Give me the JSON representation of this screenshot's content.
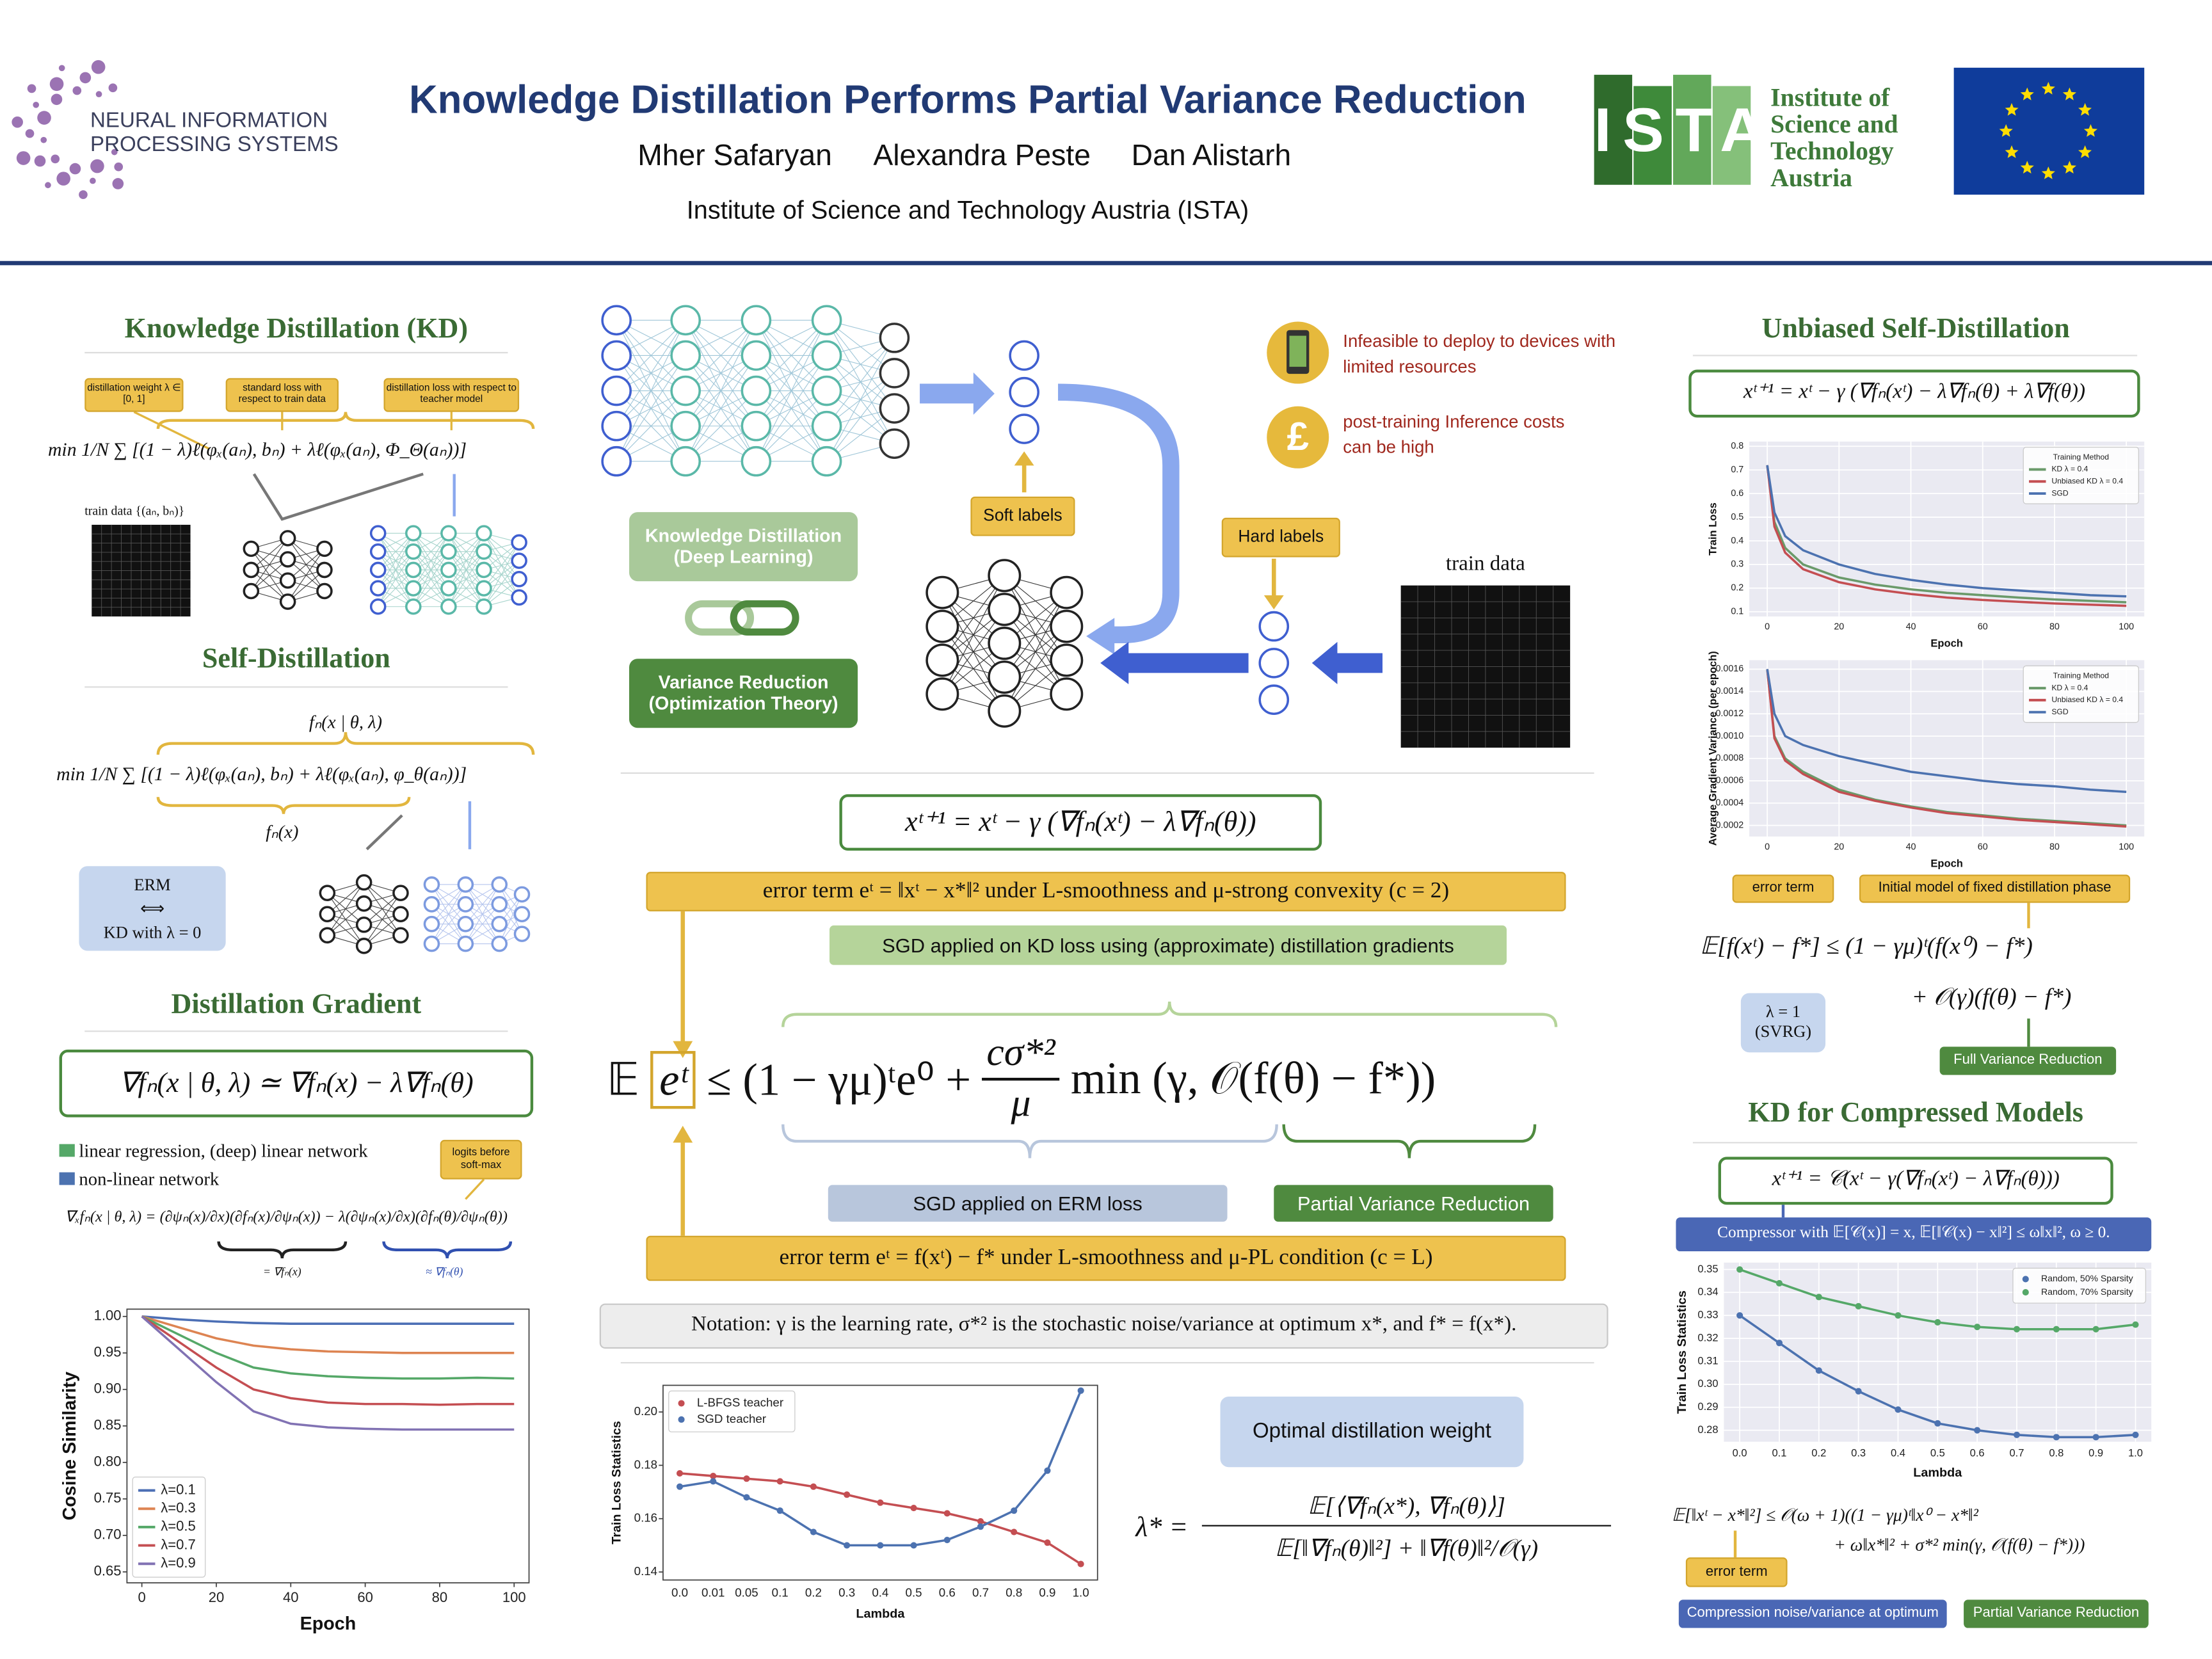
{
  "header": {
    "logo_text": [
      "NEURAL INFORMATION",
      "PROCESSING SYSTEMS"
    ],
    "title": "Knowledge Distillation Performs Partial Variance Reduction",
    "authors": [
      "Mher Safaryan",
      "Alexandra Peste",
      "Dan Alistarh"
    ],
    "affiliation": "Institute of Science and Technology Austria (ISTA)",
    "ista_logo": "ISTA",
    "ista_name": [
      "Institute of",
      "Science and",
      "Technology",
      "Austria"
    ]
  },
  "kd": {
    "heading": "Knowledge Distillation (KD)",
    "tags": [
      "distillation weight λ ∈ [0, 1]",
      "standard loss with respect to train data",
      "distillation loss with respect to teacher model"
    ],
    "formula": "min  1/N ∑ [(1 − λ)ℓ(φₓ(aₙ), bₙ) + λℓ(φₓ(aₙ), Φ_Θ(aₙ))]",
    "train_data": "train data {(aₙ, bₙ)}"
  },
  "self_distillation": {
    "heading": "Self-Distillation",
    "top_label": "fₙ(x | θ, λ)",
    "formula": "min  1/N ∑ [(1 − λ)ℓ(φₓ(aₙ), bₙ) + λℓ(φₓ(aₙ), φ_θ(aₙ))]",
    "bottom_label": "fₙ(x)",
    "erm": [
      "ERM",
      "⟺",
      "KD with λ = 0"
    ]
  },
  "distillation_gradient": {
    "heading": "Distillation Gradient",
    "formula": "∇fₙ(x | θ, λ) ≃ ∇fₙ(x) − λ∇fₙ(θ)",
    "legend": [
      "linear regression, (deep) linear network",
      "non-linear network"
    ],
    "tag": "logits before soft-max",
    "formula2": "∇ₓfₙ(x | θ, λ) = (∂ψₙ(x)/∂x)(∂fₙ(x)/∂ψₙ(x)) − λ(∂ψₙ(x)/∂x)(∂fₙ(θ)/∂ψₙ(θ))",
    "under": [
      "= ∇fₙ(x)",
      "≈ ∇fₙ(θ)"
    ]
  },
  "middle": {
    "problems": [
      "Infeasible to deploy to devices with limited resources",
      "post-training Inference costs can be high"
    ],
    "icon": "£",
    "soft": "Soft labels",
    "hard": "Hard labels",
    "train_data": "train data",
    "kd_box": "Knowledge Distillation (Deep Learning)",
    "vr_box": "Variance Reduction (Optimization Theory)",
    "update": "xᵗ⁺¹ = xᵗ − γ (∇fₙ(xᵗ) − λ∇fₙ(θ))",
    "error1": "error term eᵗ = ‖xᵗ − x*‖² under L-smoothness and μ-strong convexity (c = 2)",
    "sgd_kd": "SGD applied on KD loss using (approximate) distillation gradients",
    "bound": {
      "lhs": "𝔼",
      "boxed": "eᵗ",
      "rhs": "≤ (1 − γμ)ᵗe⁰ +",
      "num": "cσ*²",
      "den": "μ",
      "tail": "min (γ, 𝒪(f(θ) − f*))"
    },
    "sgd_erm": "SGD applied on ERM loss",
    "pvr": "Partial Variance Reduction",
    "error2": "error term eᵗ = f(xᵗ) − f* under L-smoothness and μ-PL condition (c = L)",
    "notation": "Notation: γ is the learning rate, σ*² is the stochastic noise/variance at optimum x*, and f* = f(x*).",
    "optimal": "Optimal distillation weight",
    "lambda_star": {
      "lhs": "λ* =",
      "num": "𝔼[⟨∇fₙ(x*), ∇fₙ(θ)⟩]",
      "den": "𝔼[‖∇fₙ(θ)‖²] + ‖∇f(θ)‖²/𝒪(γ)"
    }
  },
  "right": {
    "heading": "Unbiased Self-Distillation",
    "update": "xᵗ⁺¹ = xᵗ − γ (∇fₙ(xᵗ) − λ∇fₙ(θ) + λ∇f(θ))",
    "tags": [
      "error term",
      "Initial model of fixed distillation phase"
    ],
    "bound": [
      "𝔼[f(xᵗ) − f*] ≤ (1 − γμ)ᵗ(f(x⁰) − f*)",
      "+ 𝒪(γ)(f(θ) − f*)"
    ],
    "svrg": [
      "λ = 1",
      "(SVRG)"
    ],
    "full_vr": "Full Variance Reduction",
    "heading2": "KD for Compressed Models",
    "update2": "xᵗ⁺¹ = 𝒞(xᵗ − γ(∇fₙ(xᵗ) − λ∇fₙ(θ)))",
    "compressor": "Compressor with 𝔼[𝒞(x)] = x, 𝔼[‖𝒞(x) − x‖²] ≤ ω‖x‖², ω ≥ 0.",
    "bound2": [
      "𝔼[‖xᵗ − x*‖²] ≤ 𝒪(ω + 1)((1 − γμ)ᵗ‖x⁰ − x*‖²",
      "+ ω‖x*‖² + σ*² min(γ, 𝒪(f(θ) − f*)))"
    ],
    "tags2": [
      "error term",
      "Compression noise/variance at optimum",
      "Partial Variance Reduction"
    ]
  },
  "chart_data": [
    {
      "type": "line",
      "x": [
        0,
        10,
        20,
        30,
        40,
        50,
        60,
        70,
        80,
        90,
        100
      ],
      "xlim": [
        -4,
        104
      ],
      "ylim": [
        0.635,
        1.01
      ],
      "xticks": [
        0,
        20,
        40,
        60,
        80,
        100
      ],
      "yticks": [
        {
          "value": 1,
          "label": "1.00"
        },
        0.95,
        {
          "value": 0.9,
          "label": "0.90"
        },
        0.85,
        {
          "value": 0.8,
          "label": "0.80"
        },
        0.75,
        {
          "value": 0.7,
          "label": "0.70"
        },
        0.65
      ],
      "xlabel": "Epoch",
      "ylabel": "Cosine Similarity",
      "legend": "lower left",
      "grid": false,
      "series": [
        {
          "name": "λ=0.1",
          "color": "#4c6fb5",
          "values": [
            1.0,
            0.996,
            0.993,
            0.991,
            0.99,
            0.99,
            0.99,
            0.99,
            0.99,
            0.99,
            0.99
          ]
        },
        {
          "name": "λ=0.3",
          "color": "#dd8452",
          "values": [
            1.0,
            0.985,
            0.97,
            0.96,
            0.955,
            0.952,
            0.951,
            0.95,
            0.95,
            0.95,
            0.95
          ]
        },
        {
          "name": "λ=0.5",
          "color": "#55a868",
          "values": [
            1.0,
            0.975,
            0.95,
            0.93,
            0.922,
            0.918,
            0.916,
            0.915,
            0.915,
            0.916,
            0.915
          ]
        },
        {
          "name": "λ=0.7",
          "color": "#c44e52",
          "values": [
            1.0,
            0.965,
            0.93,
            0.9,
            0.888,
            0.882,
            0.88,
            0.88,
            0.879,
            0.88,
            0.88
          ]
        },
        {
          "name": "λ=0.9",
          "color": "#8172b3",
          "values": [
            1.0,
            0.955,
            0.91,
            0.87,
            0.853,
            0.848,
            0.846,
            0.845,
            0.845,
            0.845,
            0.845
          ]
        }
      ]
    },
    {
      "type": "line",
      "x": [
        0,
        2,
        5,
        10,
        20,
        30,
        40,
        50,
        60,
        70,
        80,
        90,
        100
      ],
      "xlim": [
        -5,
        105
      ],
      "ylim": [
        0.08,
        0.82
      ],
      "xticks": [
        0,
        20,
        40,
        60,
        80,
        100
      ],
      "yticks": [
        0.1,
        0.2,
        0.3,
        0.4,
        0.5,
        0.6,
        0.7,
        0.8
      ],
      "xlabel": "Epoch",
      "ylabel": "Train Loss",
      "legend": "upper right",
      "legend_title": "Training Method",
      "grid": true,
      "series": [
        {
          "name": "KD λ = 0.4",
          "color": "#6a9a6a",
          "values": [
            0.72,
            0.48,
            0.37,
            0.3,
            0.245,
            0.215,
            0.195,
            0.18,
            0.17,
            0.16,
            0.152,
            0.146,
            0.14
          ]
        },
        {
          "name": "Unbiased KD λ = 0.4",
          "color": "#c44e52",
          "values": [
            0.72,
            0.46,
            0.35,
            0.28,
            0.225,
            0.195,
            0.175,
            0.16,
            0.15,
            0.142,
            0.135,
            0.13,
            0.125
          ]
        },
        {
          "name": "SGD",
          "color": "#4c72b0",
          "values": [
            0.72,
            0.52,
            0.42,
            0.36,
            0.3,
            0.26,
            0.235,
            0.215,
            0.2,
            0.19,
            0.18,
            0.17,
            0.165
          ]
        }
      ]
    },
    {
      "type": "line",
      "x": [
        0,
        2,
        5,
        10,
        20,
        30,
        40,
        50,
        60,
        70,
        80,
        90,
        100
      ],
      "xlim": [
        -5,
        105
      ],
      "ylim": [
        0.0001,
        0.00168
      ],
      "xticks": [
        0,
        20,
        40,
        60,
        80,
        100
      ],
      "yticks": [
        0.0002,
        0.0004,
        0.0006,
        0.0008,
        {
          "value": 0.001,
          "label": "0.0010"
        },
        0.0012,
        0.0014,
        0.0016
      ],
      "xlabel": "Epoch",
      "ylabel": "Average Gradient Variance (per epoch)",
      "legend": "upper right",
      "legend_title": "Training Method",
      "grid": true,
      "series": [
        {
          "name": "KD λ = 0.4",
          "color": "#6a9a6a",
          "values": [
            0.0016,
            0.001,
            0.0008,
            0.00068,
            0.00052,
            0.00043,
            0.00037,
            0.00032,
            0.00029,
            0.00026,
            0.00024,
            0.00022,
            0.0002
          ]
        },
        {
          "name": "Unbiased KD λ = 0.4",
          "color": "#c44e52",
          "values": [
            0.0016,
            0.00098,
            0.00078,
            0.00066,
            0.0005,
            0.00042,
            0.00036,
            0.00031,
            0.00028,
            0.00025,
            0.00023,
            0.00021,
            0.00019
          ]
        },
        {
          "name": "SGD",
          "color": "#4c72b0",
          "values": [
            0.0016,
            0.0012,
            0.001,
            0.00092,
            0.00082,
            0.00075,
            0.00068,
            0.00064,
            0.0006,
            0.00057,
            0.00055,
            0.00052,
            0.0005
          ]
        }
      ]
    },
    {
      "type": "scatter",
      "x": [
        0,
        0.1,
        0.2,
        0.3,
        0.4,
        0.5,
        0.6,
        0.7,
        0.8,
        0.9,
        1
      ],
      "xlim": [
        -0.04,
        1.04
      ],
      "ylim": [
        0.275,
        0.353
      ],
      "xticks": [
        {
          "value": 0,
          "label": "0.0"
        },
        0.1,
        0.2,
        0.3,
        0.4,
        0.5,
        0.6,
        0.7,
        0.8,
        0.9,
        {
          "value": 1,
          "label": "1.0"
        }
      ],
      "yticks": [
        0.28,
        0.29,
        {
          "value": 0.3,
          "label": "0.30"
        },
        0.31,
        0.32,
        0.33,
        0.34,
        0.35
      ],
      "xlabel": "Lambda",
      "ylabel": "Train Loss Statistics",
      "legend": "upper right",
      "grid": true,
      "series": [
        {
          "name": "Random, 50% Sparsity",
          "color": "#4c72b0",
          "values": [
            0.33,
            0.318,
            0.306,
            0.297,
            0.289,
            0.283,
            0.28,
            0.278,
            0.277,
            0.277,
            0.278
          ]
        },
        {
          "name": "Random, 70% Sparsity",
          "color": "#55a868",
          "values": [
            0.35,
            0.344,
            0.338,
            0.334,
            0.33,
            0.327,
            0.325,
            0.324,
            0.324,
            0.324,
            0.326
          ]
        }
      ]
    },
    {
      "type": "scatter",
      "categories": [
        "0.0",
        "0.01",
        "0.05",
        "0.1",
        "0.2",
        "0.3",
        "0.4",
        "0.5",
        "0.6",
        "0.7",
        "0.8",
        "0.9",
        "1.0"
      ],
      "ylim": [
        0.137,
        0.21
      ],
      "yticks": [
        0.14,
        0.16,
        0.18,
        {
          "value": 0.2,
          "label": "0.20"
        }
      ],
      "xlabel": "Lambda",
      "ylabel": "Train Loss Statistics",
      "legend": "upper left",
      "grid": false,
      "series": [
        {
          "name": "L-BFGS teacher",
          "color": "#c44e52",
          "values": [
            0.177,
            0.176,
            0.175,
            0.174,
            0.172,
            0.169,
            0.166,
            0.164,
            0.162,
            0.159,
            0.155,
            0.151,
            0.143
          ]
        },
        {
          "name": "SGD teacher",
          "color": "#4c72b0",
          "values": [
            0.172,
            0.174,
            0.168,
            0.163,
            0.155,
            0.15,
            0.15,
            0.15,
            0.152,
            0.157,
            0.163,
            0.178,
            0.208
          ]
        }
      ]
    }
  ]
}
